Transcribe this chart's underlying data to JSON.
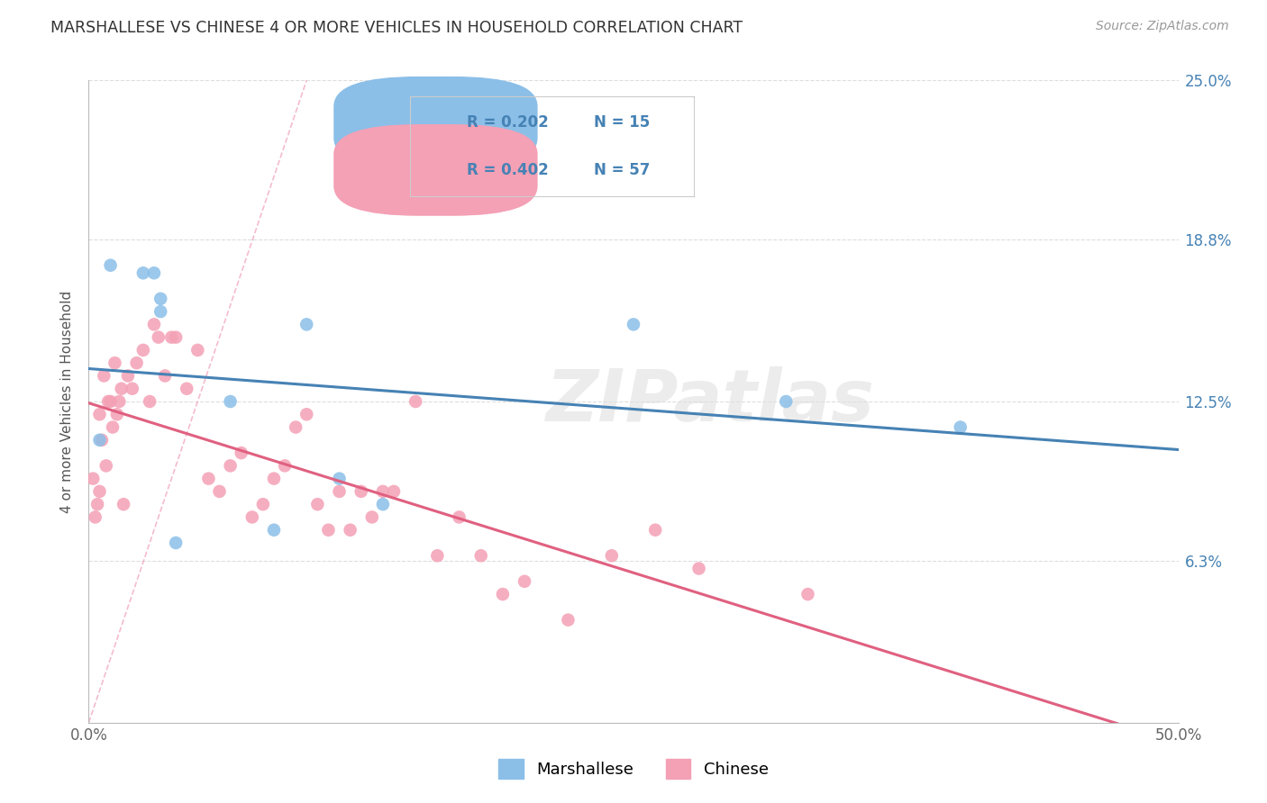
{
  "title": "MARSHALLESE VS CHINESE 4 OR MORE VEHICLES IN HOUSEHOLD CORRELATION CHART",
  "source": "Source: ZipAtlas.com",
  "ylabel": "4 or more Vehicles in Household",
  "xlim": [
    0.0,
    50.0
  ],
  "ylim": [
    0.0,
    25.0
  ],
  "xtick_vals": [
    0.0,
    12.5,
    25.0,
    37.5,
    50.0
  ],
  "xtick_labels": [
    "0.0%",
    "",
    "",
    "",
    "50.0%"
  ],
  "ytick_vals": [
    6.3,
    12.5,
    18.8,
    25.0
  ],
  "ytick_labels": [
    "6.3%",
    "12.5%",
    "18.8%",
    "25.0%"
  ],
  "watermark": "ZIPatlas",
  "legend_marsh_R": "R = 0.202",
  "legend_marsh_N": "N = 15",
  "legend_chin_R": "R = 0.402",
  "legend_chin_N": "N = 57",
  "marsh_color": "#8BBFE8",
  "chin_color": "#F4A0B5",
  "marsh_line_color": "#4682B4",
  "chin_line_color": "#E06080",
  "chin_dash_color": "#F0A0B8",
  "grid_color": "#DDDDDD",
  "bg_color": "#FFFFFF",
  "right_tick_color": "#4682B4",
  "marsh_x": [
    0.5,
    1.0,
    2.5,
    3.0,
    3.3,
    3.3,
    4.0,
    6.5,
    8.5,
    10.0,
    11.5,
    13.5,
    25.0,
    32.0,
    40.0
  ],
  "marsh_y": [
    11.0,
    17.8,
    17.5,
    17.5,
    16.5,
    16.0,
    7.0,
    12.5,
    7.5,
    15.5,
    9.5,
    8.5,
    15.5,
    12.5,
    11.5
  ],
  "chin_x": [
    0.2,
    0.3,
    0.4,
    0.5,
    0.5,
    0.6,
    0.7,
    0.8,
    0.9,
    1.0,
    1.1,
    1.2,
    1.3,
    1.4,
    1.5,
    1.6,
    1.8,
    2.0,
    2.2,
    2.5,
    2.8,
    3.0,
    3.2,
    3.5,
    3.8,
    4.0,
    4.5,
    5.0,
    5.5,
    6.0,
    6.5,
    7.0,
    7.5,
    8.0,
    8.5,
    9.0,
    9.5,
    10.0,
    10.5,
    11.0,
    11.5,
    12.0,
    12.5,
    13.0,
    13.5,
    14.0,
    15.0,
    16.0,
    17.0,
    18.0,
    19.0,
    20.0,
    22.0,
    24.0,
    26.0,
    28.0,
    33.0
  ],
  "chin_y": [
    9.5,
    8.0,
    8.5,
    9.0,
    12.0,
    11.0,
    13.5,
    10.0,
    12.5,
    12.5,
    11.5,
    14.0,
    12.0,
    12.5,
    13.0,
    8.5,
    13.5,
    13.0,
    14.0,
    14.5,
    12.5,
    15.5,
    15.0,
    13.5,
    15.0,
    15.0,
    13.0,
    14.5,
    9.5,
    9.0,
    10.0,
    10.5,
    8.0,
    8.5,
    9.5,
    10.0,
    11.5,
    12.0,
    8.5,
    7.5,
    9.0,
    7.5,
    9.0,
    8.0,
    9.0,
    9.0,
    12.5,
    6.5,
    8.0,
    6.5,
    5.0,
    5.5,
    4.0,
    6.5,
    7.5,
    6.0,
    5.0
  ]
}
